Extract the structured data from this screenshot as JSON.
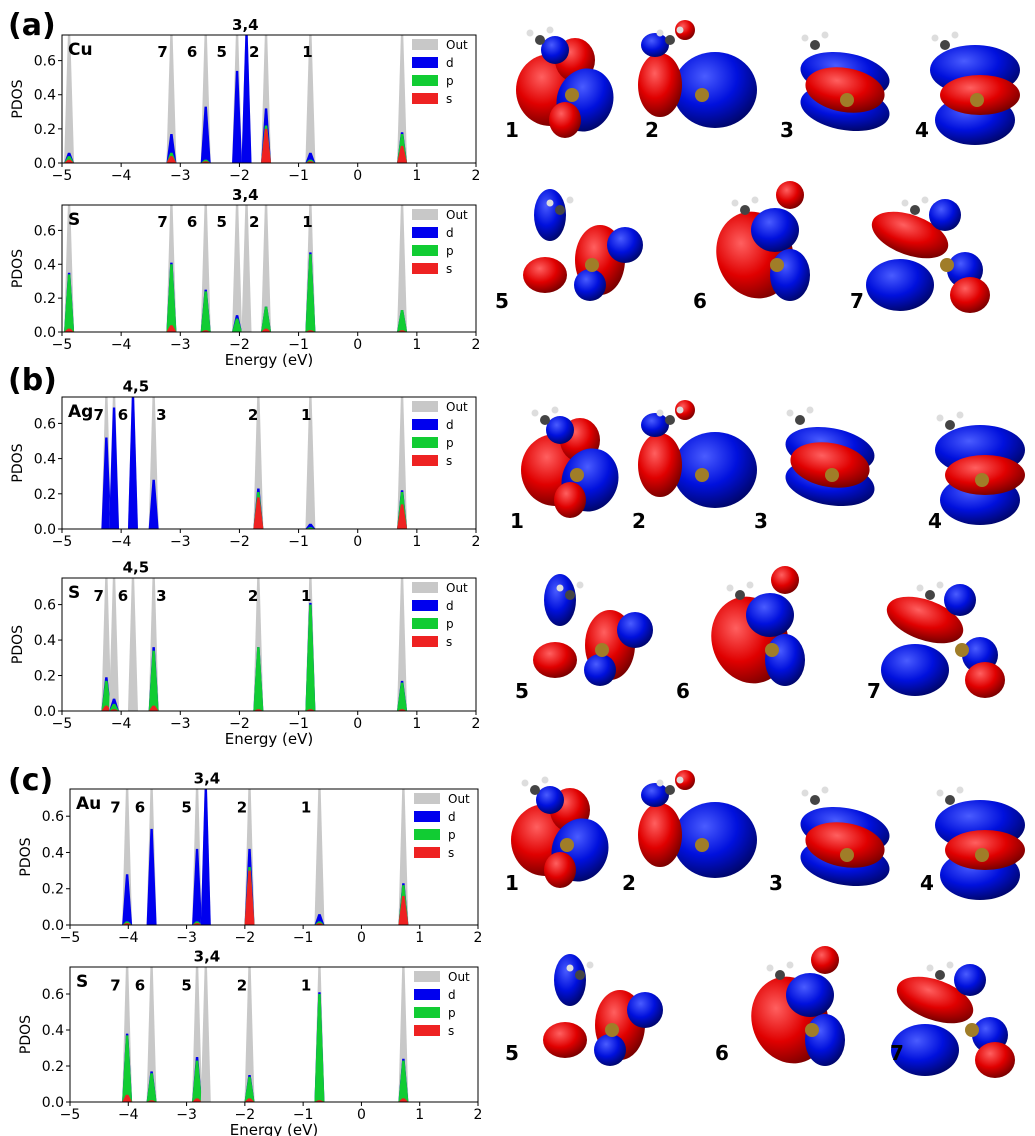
{
  "figure": {
    "panels": [
      {
        "letter": "(a)",
        "plots": [
          {
            "type": "bar",
            "label": "Cu",
            "xlabel": "",
            "ylabel": "PDOS",
            "xlim": [
              -5,
              2
            ],
            "ylim": [
              0,
              0.75
            ],
            "xticks": [
              "−5",
              "−4",
              "−3",
              "−2",
              "−1",
              "0",
              "1",
              "2"
            ],
            "yticks": [
              "0.0",
              "0.2",
              "0.4",
              "0.6"
            ],
            "legend": [
              "Out",
              "d",
              "p",
              "s"
            ],
            "orbital_labels": [
              {
                "text": "7",
                "x": -3.3,
                "y": 0.62
              },
              {
                "text": "6",
                "x": -2.8,
                "y": 0.62
              },
              {
                "text": "5",
                "x": -2.3,
                "y": 0.62
              },
              {
                "text": "3,4",
                "x": -1.9,
                "y": 0.78
              },
              {
                "text": "2",
                "x": -1.75,
                "y": 0.62
              },
              {
                "text": "1",
                "x": -0.85,
                "y": 0.62
              }
            ],
            "peaks": [
              {
                "x": -4.88,
                "out": 0.75,
                "d": 0.06,
                "p": 0.04,
                "s": 0.02
              },
              {
                "x": -3.15,
                "out": 0.75,
                "d": 0.17,
                "p": 0.06,
                "s": 0.04
              },
              {
                "x": -2.57,
                "out": 0.75,
                "d": 0.33,
                "p": 0.02,
                "s": 0.01
              },
              {
                "x": -2.04,
                "out": 0.75,
                "d": 0.54,
                "p": 0.0,
                "s": 0.0
              },
              {
                "x": -1.88,
                "out": 0.75,
                "d": 0.75,
                "p": 0.0,
                "s": 0.0
              },
              {
                "x": -1.55,
                "out": 0.75,
                "d": 0.32,
                "p": 0.22,
                "s": 0.2
              },
              {
                "x": -0.8,
                "out": 0.75,
                "d": 0.06,
                "p": 0.02,
                "s": 0.01
              },
              {
                "x": 0.75,
                "out": 0.75,
                "d": 0.18,
                "p": 0.17,
                "s": 0.1
              }
            ]
          },
          {
            "type": "bar",
            "label": "S",
            "xlabel": "Energy (eV)",
            "ylabel": "PDOS",
            "xlim": [
              -5,
              2
            ],
            "ylim": [
              0,
              0.75
            ],
            "xticks": [
              "−5",
              "−4",
              "−3",
              "−2",
              "−1",
              "0",
              "1",
              "2"
            ],
            "yticks": [
              "0.0",
              "0.2",
              "0.4",
              "0.6"
            ],
            "legend": [
              "Out",
              "d",
              "p",
              "s"
            ],
            "orbital_labels": [
              {
                "text": "7",
                "x": -3.3,
                "y": 0.62
              },
              {
                "text": "6",
                "x": -2.8,
                "y": 0.62
              },
              {
                "text": "5",
                "x": -2.3,
                "y": 0.62
              },
              {
                "text": "3,4",
                "x": -1.9,
                "y": 0.78
              },
              {
                "text": "2",
                "x": -1.75,
                "y": 0.62
              },
              {
                "text": "1",
                "x": -0.85,
                "y": 0.62
              }
            ],
            "peaks": [
              {
                "x": -4.88,
                "out": 0.75,
                "d": 0.35,
                "p": 0.34,
                "s": 0.02
              },
              {
                "x": -3.15,
                "out": 0.75,
                "d": 0.41,
                "p": 0.4,
                "s": 0.04
              },
              {
                "x": -2.57,
                "out": 0.75,
                "d": 0.25,
                "p": 0.24,
                "s": 0.01
              },
              {
                "x": -2.04,
                "out": 0.75,
                "d": 0.1,
                "p": 0.08,
                "s": 0.0
              },
              {
                "x": -1.88,
                "out": 0.75,
                "d": 0.0,
                "p": 0.0,
                "s": 0.0
              },
              {
                "x": -1.55,
                "out": 0.75,
                "d": 0.15,
                "p": 0.15,
                "s": 0.02
              },
              {
                "x": -0.8,
                "out": 0.75,
                "d": 0.47,
                "p": 0.46,
                "s": 0.01
              },
              {
                "x": 0.75,
                "out": 0.75,
                "d": 0.13,
                "p": 0.13,
                "s": 0.01
              }
            ]
          }
        ],
        "orbital_numbers": [
          "1",
          "2",
          "3",
          "4",
          "5",
          "6",
          "7"
        ]
      },
      {
        "letter": "(b)",
        "plots": [
          {
            "type": "bar",
            "label": "Ag",
            "xlabel": "",
            "ylabel": "PDOS",
            "xlim": [
              -5,
              2
            ],
            "ylim": [
              0,
              0.75
            ],
            "xticks": [
              "−5",
              "−4",
              "−3",
              "−2",
              "−1",
              "0",
              "1",
              "2"
            ],
            "yticks": [
              "0.0",
              "0.2",
              "0.4",
              "0.6"
            ],
            "legend": [
              "Out",
              "d",
              "p",
              "s"
            ],
            "orbital_labels": [
              {
                "text": "7",
                "x": -4.38,
                "y": 0.62
              },
              {
                "text": "6",
                "x": -3.97,
                "y": 0.62
              },
              {
                "text": "4,5",
                "x": -3.75,
                "y": 0.78
              },
              {
                "text": "3",
                "x": -3.32,
                "y": 0.62
              },
              {
                "text": "2",
                "x": -1.77,
                "y": 0.62
              },
              {
                "text": "1",
                "x": -0.87,
                "y": 0.62
              }
            ],
            "peaks": [
              {
                "x": -4.25,
                "out": 0.75,
                "d": 0.52,
                "p": 0.0,
                "s": 0.0
              },
              {
                "x": -4.12,
                "out": 0.75,
                "d": 0.69,
                "p": 0.0,
                "s": 0.0
              },
              {
                "x": -3.8,
                "out": 0.75,
                "d": 0.75,
                "p": 0.0,
                "s": 0.0
              },
              {
                "x": -3.45,
                "out": 0.75,
                "d": 0.28,
                "p": 0.0,
                "s": 0.0
              },
              {
                "x": -1.68,
                "out": 0.75,
                "d": 0.23,
                "p": 0.21,
                "s": 0.18
              },
              {
                "x": -0.8,
                "out": 0.75,
                "d": 0.03,
                "p": 0.01,
                "s": 0.0
              },
              {
                "x": 0.75,
                "out": 0.75,
                "d": 0.22,
                "p": 0.21,
                "s": 0.14
              }
            ]
          },
          {
            "type": "bar",
            "label": "S",
            "xlabel": "Energy (eV)",
            "ylabel": "PDOS",
            "xlim": [
              -5,
              2
            ],
            "ylim": [
              0,
              0.75
            ],
            "xticks": [
              "−5",
              "−4",
              "−3",
              "−2",
              "−1",
              "0",
              "1",
              "2"
            ],
            "yticks": [
              "0.0",
              "0.2",
              "0.4",
              "0.6"
            ],
            "legend": [
              "Out",
              "d",
              "p",
              "s"
            ],
            "orbital_labels": [
              {
                "text": "7",
                "x": -4.38,
                "y": 0.62
              },
              {
                "text": "6",
                "x": -3.97,
                "y": 0.62
              },
              {
                "text": "4,5",
                "x": -3.75,
                "y": 0.78
              },
              {
                "text": "3",
                "x": -3.32,
                "y": 0.62
              },
              {
                "text": "2",
                "x": -1.77,
                "y": 0.62
              },
              {
                "text": "1",
                "x": -0.87,
                "y": 0.62
              }
            ],
            "peaks": [
              {
                "x": -4.25,
                "out": 0.75,
                "d": 0.19,
                "p": 0.17,
                "s": 0.03
              },
              {
                "x": -4.12,
                "out": 0.75,
                "d": 0.07,
                "p": 0.04,
                "s": 0.01
              },
              {
                "x": -3.8,
                "out": 0.75,
                "d": 0.0,
                "p": 0.0,
                "s": 0.0
              },
              {
                "x": -3.45,
                "out": 0.75,
                "d": 0.36,
                "p": 0.34,
                "s": 0.03
              },
              {
                "x": -1.68,
                "out": 0.75,
                "d": 0.36,
                "p": 0.36,
                "s": 0.01
              },
              {
                "x": -0.8,
                "out": 0.75,
                "d": 0.61,
                "p": 0.6,
                "s": 0.01
              },
              {
                "x": 0.75,
                "out": 0.75,
                "d": 0.17,
                "p": 0.16,
                "s": 0.01
              }
            ]
          }
        ],
        "orbital_numbers": [
          "1",
          "2",
          "3",
          "4",
          "5",
          "6",
          "7"
        ]
      },
      {
        "letter": "(c)",
        "plots": [
          {
            "type": "bar",
            "label": "Au",
            "xlabel": "",
            "ylabel": "PDOS",
            "xlim": [
              -5,
              2
            ],
            "ylim": [
              0,
              0.75
            ],
            "xticks": [
              "−5",
              "−4",
              "−3",
              "−2",
              "−1",
              "0",
              "1",
              "2"
            ],
            "yticks": [
              "0.0",
              "0.2",
              "0.4",
              "0.6"
            ],
            "legend": [
              "Out",
              "d",
              "p",
              "s"
            ],
            "orbital_labels": [
              {
                "text": "7",
                "x": -4.22,
                "y": 0.62
              },
              {
                "text": "6",
                "x": -3.8,
                "y": 0.62
              },
              {
                "text": "5",
                "x": -3.0,
                "y": 0.62
              },
              {
                "text": "3,4",
                "x": -2.65,
                "y": 0.78
              },
              {
                "text": "2",
                "x": -2.05,
                "y": 0.62
              },
              {
                "text": "1",
                "x": -0.95,
                "y": 0.62
              }
            ],
            "peaks": [
              {
                "x": -4.02,
                "out": 0.75,
                "d": 0.28,
                "p": 0.02,
                "s": 0.01
              },
              {
                "x": -3.6,
                "out": 0.75,
                "d": 0.53,
                "p": 0.0,
                "s": 0.0
              },
              {
                "x": -2.82,
                "out": 0.75,
                "d": 0.42,
                "p": 0.02,
                "s": 0.01
              },
              {
                "x": -2.67,
                "out": 0.75,
                "d": 0.75,
                "p": 0.0,
                "s": 0.0
              },
              {
                "x": -1.92,
                "out": 0.75,
                "d": 0.42,
                "p": 0.32,
                "s": 0.3
              },
              {
                "x": -0.72,
                "out": 0.75,
                "d": 0.06,
                "p": 0.02,
                "s": 0.01
              },
              {
                "x": 0.72,
                "out": 0.75,
                "d": 0.23,
                "p": 0.22,
                "s": 0.16
              }
            ]
          },
          {
            "type": "bar",
            "label": "S",
            "xlabel": "Energy (eV)",
            "ylabel": "PDOS",
            "xlim": [
              -5,
              2
            ],
            "ylim": [
              0,
              0.75
            ],
            "xticks": [
              "−5",
              "−4",
              "−3",
              "−2",
              "−1",
              "0",
              "1",
              "2"
            ],
            "yticks": [
              "0.0",
              "0.2",
              "0.4",
              "0.6"
            ],
            "legend": [
              "Out",
              "d",
              "p",
              "s"
            ],
            "orbital_labels": [
              {
                "text": "7",
                "x": -4.22,
                "y": 0.62
              },
              {
                "text": "6",
                "x": -3.8,
                "y": 0.62
              },
              {
                "text": "5",
                "x": -3.0,
                "y": 0.62
              },
              {
                "text": "3,4",
                "x": -2.65,
                "y": 0.78
              },
              {
                "text": "2",
                "x": -2.05,
                "y": 0.62
              },
              {
                "text": "1",
                "x": -0.95,
                "y": 0.62
              }
            ],
            "peaks": [
              {
                "x": -4.02,
                "out": 0.75,
                "d": 0.38,
                "p": 0.37,
                "s": 0.04
              },
              {
                "x": -3.6,
                "out": 0.75,
                "d": 0.17,
                "p": 0.16,
                "s": 0.01
              },
              {
                "x": -2.82,
                "out": 0.75,
                "d": 0.25,
                "p": 0.23,
                "s": 0.02
              },
              {
                "x": -2.67,
                "out": 0.75,
                "d": 0.0,
                "p": 0.0,
                "s": 0.0
              },
              {
                "x": -1.92,
                "out": 0.75,
                "d": 0.15,
                "p": 0.14,
                "s": 0.02
              },
              {
                "x": -0.72,
                "out": 0.75,
                "d": 0.61,
                "p": 0.6,
                "s": 0.01
              },
              {
                "x": 0.72,
                "out": 0.75,
                "d": 0.24,
                "p": 0.23,
                "s": 0.02
              }
            ]
          }
        ],
        "orbital_numbers": [
          "1",
          "2",
          "3",
          "4",
          "5",
          "6",
          "7"
        ]
      }
    ]
  },
  "colors": {
    "out": "#c8c8c8",
    "d": "#0000ee",
    "p": "#11cc33",
    "s": "#ee2222",
    "lobe_red": "#e00000",
    "lobe_blue": "#0010dd"
  }
}
